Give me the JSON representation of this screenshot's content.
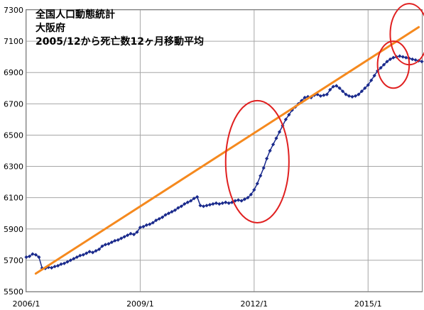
{
  "chart_data": {
    "type": "line",
    "title_lines": [
      "全国人口動態統計",
      "大阪府",
      "2005/12から死亡数12ヶ月移動平均"
    ],
    "xlabel": "",
    "ylabel": "",
    "xlim": [
      "2006/1",
      "2016/6"
    ],
    "ylim": [
      5500,
      7300
    ],
    "yticks": [
      5500,
      5700,
      5900,
      6100,
      6300,
      6500,
      6700,
      6900,
      7100,
      7300
    ],
    "xticks": [
      {
        "date": "2006/1",
        "label": "2006/1"
      },
      {
        "date": "2009/1",
        "label": "2009/1"
      },
      {
        "date": "2012/1",
        "label": "2012/1"
      },
      {
        "date": "2015/1",
        "label": "2015/1"
      }
    ],
    "grid": true,
    "series": [
      {
        "name": "",
        "color": "#1a2a8c",
        "marker": "diamond",
        "points": [
          [
            "2006/01",
            5720
          ],
          [
            "2006/02",
            5725
          ],
          [
            "2006/03",
            5740
          ],
          [
            "2006/04",
            5735
          ],
          [
            "2006/05",
            5720
          ],
          [
            "2006/06",
            5650
          ],
          [
            "2006/07",
            5648
          ],
          [
            "2006/08",
            5655
          ],
          [
            "2006/09",
            5652
          ],
          [
            "2006/10",
            5660
          ],
          [
            "2006/11",
            5665
          ],
          [
            "2006/12",
            5675
          ],
          [
            "2007/01",
            5680
          ],
          [
            "2007/02",
            5690
          ],
          [
            "2007/03",
            5700
          ],
          [
            "2007/04",
            5710
          ],
          [
            "2007/05",
            5720
          ],
          [
            "2007/06",
            5730
          ],
          [
            "2007/07",
            5735
          ],
          [
            "2007/08",
            5745
          ],
          [
            "2007/09",
            5755
          ],
          [
            "2007/10",
            5750
          ],
          [
            "2007/11",
            5760
          ],
          [
            "2007/12",
            5770
          ],
          [
            "2008/01",
            5790
          ],
          [
            "2008/02",
            5800
          ],
          [
            "2008/03",
            5805
          ],
          [
            "2008/04",
            5815
          ],
          [
            "2008/05",
            5825
          ],
          [
            "2008/06",
            5830
          ],
          [
            "2008/07",
            5840
          ],
          [
            "2008/08",
            5850
          ],
          [
            "2008/09",
            5860
          ],
          [
            "2008/10",
            5870
          ],
          [
            "2008/11",
            5865
          ],
          [
            "2008/12",
            5880
          ],
          [
            "2009/01",
            5910
          ],
          [
            "2009/02",
            5915
          ],
          [
            "2009/03",
            5925
          ],
          [
            "2009/04",
            5930
          ],
          [
            "2009/05",
            5940
          ],
          [
            "2009/06",
            5955
          ],
          [
            "2009/07",
            5965
          ],
          [
            "2009/08",
            5975
          ],
          [
            "2009/09",
            5990
          ],
          [
            "2009/10",
            6000
          ],
          [
            "2009/11",
            6010
          ],
          [
            "2009/12",
            6020
          ],
          [
            "2010/01",
            6035
          ],
          [
            "2010/02",
            6045
          ],
          [
            "2010/03",
            6060
          ],
          [
            "2010/04",
            6070
          ],
          [
            "2010/05",
            6080
          ],
          [
            "2010/06",
            6095
          ],
          [
            "2010/07",
            6105
          ],
          [
            "2010/08",
            6050
          ],
          [
            "2010/09",
            6045
          ],
          [
            "2010/10",
            6050
          ],
          [
            "2010/11",
            6055
          ],
          [
            "2010/12",
            6060
          ],
          [
            "2011/01",
            6065
          ],
          [
            "2011/02",
            6060
          ],
          [
            "2011/03",
            6065
          ],
          [
            "2011/04",
            6070
          ],
          [
            "2011/05",
            6065
          ],
          [
            "2011/06",
            6070
          ],
          [
            "2011/07",
            6080
          ],
          [
            "2011/08",
            6085
          ],
          [
            "2011/09",
            6080
          ],
          [
            "2011/10",
            6090
          ],
          [
            "2011/11",
            6100
          ],
          [
            "2011/12",
            6120
          ],
          [
            "2012/01",
            6150
          ],
          [
            "2012/02",
            6190
          ],
          [
            "2012/03",
            6240
          ],
          [
            "2012/04",
            6290
          ],
          [
            "2012/05",
            6350
          ],
          [
            "2012/06",
            6400
          ],
          [
            "2012/07",
            6440
          ],
          [
            "2012/08",
            6480
          ],
          [
            "2012/09",
            6520
          ],
          [
            "2012/10",
            6560
          ],
          [
            "2012/11",
            6600
          ],
          [
            "2012/12",
            6630
          ],
          [
            "2013/01",
            6660
          ],
          [
            "2013/02",
            6680
          ],
          [
            "2013/03",
            6700
          ],
          [
            "2013/04",
            6720
          ],
          [
            "2013/05",
            6740
          ],
          [
            "2013/06",
            6745
          ],
          [
            "2013/07",
            6740
          ],
          [
            "2013/08",
            6755
          ],
          [
            "2013/09",
            6760
          ],
          [
            "2013/10",
            6750
          ],
          [
            "2013/11",
            6755
          ],
          [
            "2013/12",
            6760
          ],
          [
            "2014/01",
            6790
          ],
          [
            "2014/02",
            6810
          ],
          [
            "2014/03",
            6815
          ],
          [
            "2014/04",
            6800
          ],
          [
            "2014/05",
            6780
          ],
          [
            "2014/06",
            6760
          ],
          [
            "2014/07",
            6750
          ],
          [
            "2014/08",
            6745
          ],
          [
            "2014/09",
            6750
          ],
          [
            "2014/10",
            6760
          ],
          [
            "2014/11",
            6780
          ],
          [
            "2014/12",
            6800
          ],
          [
            "2015/01",
            6820
          ],
          [
            "2015/02",
            6850
          ],
          [
            "2015/03",
            6880
          ],
          [
            "2015/04",
            6910
          ],
          [
            "2015/05",
            6930
          ],
          [
            "2015/06",
            6950
          ],
          [
            "2015/07",
            6970
          ],
          [
            "2015/08",
            6985
          ],
          [
            "2015/09",
            6995
          ],
          [
            "2015/10",
            7000
          ],
          [
            "2015/11",
            7005
          ],
          [
            "2015/12",
            7000
          ],
          [
            "2016/01",
            6995
          ],
          [
            "2016/02",
            6990
          ],
          [
            "2016/03",
            6985
          ],
          [
            "2016/04",
            6980
          ],
          [
            "2016/05",
            6975
          ],
          [
            "2016/06",
            6970
          ]
        ]
      },
      {
        "name": "",
        "color": "#f5891e",
        "type": "trend",
        "points": [
          [
            "2006/04",
            5615
          ],
          [
            "2016/05",
            7190
          ]
        ]
      }
    ],
    "annotations": [
      {
        "shape": "ellipse",
        "color": "#e02020",
        "center": [
          "2012/02",
          6330
        ],
        "radii_months": 10,
        "radii_value": 390
      },
      {
        "shape": "ellipse",
        "color": "#e02020",
        "center": [
          "2015/09",
          6950
        ],
        "radii_months": 5,
        "radii_value": 150
      },
      {
        "shape": "ellipse",
        "color": "#e02020",
        "center": [
          "2016/02",
          7145
        ],
        "radii_months": 6,
        "radii_value": 195
      }
    ]
  }
}
